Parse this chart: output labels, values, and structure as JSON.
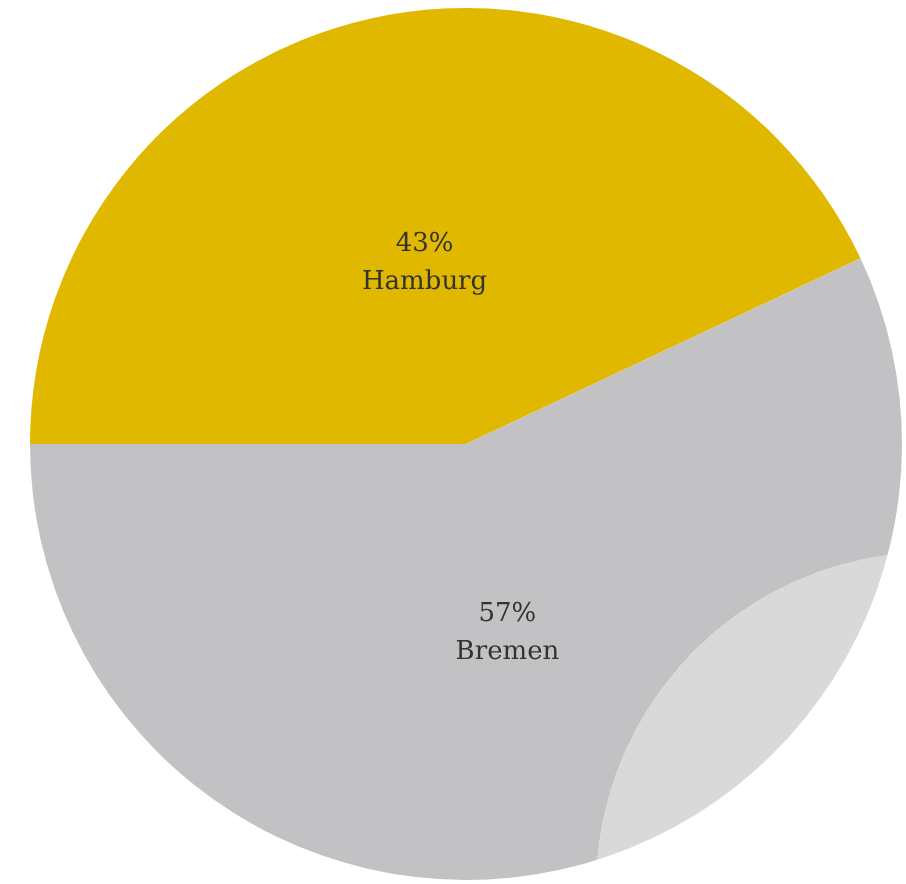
{
  "chart_data": {
    "type": "pie",
    "categories": [
      "Hamburg",
      "Bremen"
    ],
    "values": [
      43,
      57
    ],
    "colors": [
      "#e0b800",
      "#c2c2c4"
    ],
    "value_labels": [
      "43%",
      "57%"
    ]
  }
}
